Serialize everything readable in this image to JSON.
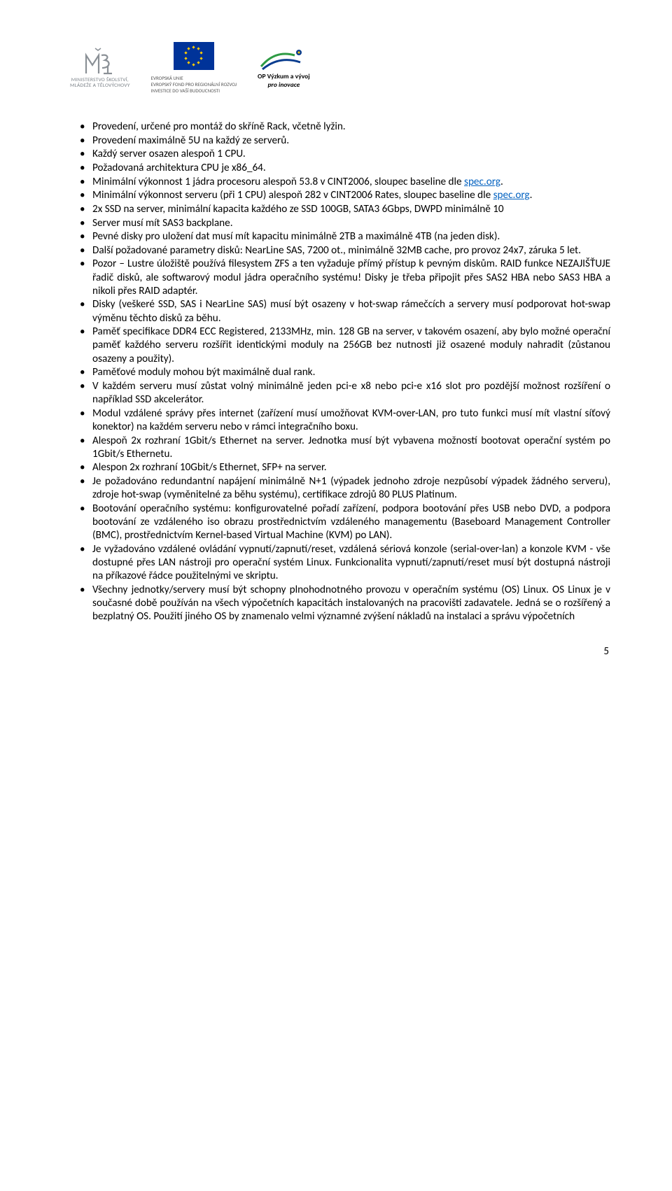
{
  "header": {
    "msmt_caption_l1": "MINISTERSTVO ŠKOLSTVÍ,",
    "msmt_caption_l2": "MLÁDEŽE A TĚLOVÝCHOVY",
    "eu_l1": "EVROPSKÁ UNIE",
    "eu_l2": "EVROPSKÝ FOND PRO REGIONÁLNÍ ROZVOJ",
    "eu_l3": "INVESTICE DO VAŠÍ BUDOUCNOSTI",
    "op_label": "OP Výzkum a vývoj",
    "op_sub": "pro inovace"
  },
  "link_text": "spec.org",
  "bullets": [
    "Provedení, určené pro montáž do skříně Rack, včetně lyžin.",
    "Provedení maximálně 5U na každý ze serverů.",
    "Každý server osazen alespoň 1 CPU.",
    "Požadovaná architektura CPU je x86_64.",
    "Minimální výkonnost 1 jádra procesoru alespoň 53.8 v CINT2006, sloupec baseline dle {{LINK}}.",
    "Minimální výkonnost serveru (při 1 CPU) alespoň 282 v CINT2006 Rates, sloupec baseline dle {{LINK}}.",
    "2x SSD na server, minimální kapacita každého ze SSD 100GB, SATA3 6Gbps, DWPD minimálně 10",
    "Server musí mít SAS3 backplane.",
    "Pevné disky pro uložení dat musí mít kapacitu minimálně 2TB a maximálně 4TB (na jeden disk).",
    "Další požadované parametry disků: NearLine SAS, 7200 ot., minimálně 32MB cache, pro provoz 24x7, záruka 5 let.",
    "Pozor – Lustre úložiště používá filesystem ZFS a ten vyžaduje přímý přístup k pevným diskům. RAID funkce NEZAJIŠŤUJE řadič disků, ale softwarový modul jádra operačního systému! Disky je třeba připojit přes SAS2 HBA nebo SAS3 HBA a nikoli přes RAID adaptér.",
    "Disky (veškeré SSD, SAS i NearLine SAS) musí být osazeny v hot-swap rámečcích a servery musí podporovat hot-swap výměnu těchto disků za běhu.",
    "Paměť specifikace DDR4 ECC Registered, 2133MHz, min. 128 GB na server, v takovém osazení, aby bylo možné operační paměť každého serveru rozšířit identickými moduly na 256GB bez nutnosti již osazené moduly nahradit (zůstanou osazeny a použity).",
    "Paměťové moduly mohou být maximálně dual rank.",
    "V každém serveru musí zůstat volný minimálně jeden pci-e x8 nebo pci-e x16 slot pro pozdější možnost rozšíření o například SSD akcelerátor.",
    "Modul vzdálené správy přes internet (zařízení musí umožňovat KVM-over-LAN, pro tuto funkci musí mít vlastní síťový konektor) na každém serveru nebo v rámci integračního boxu.",
    "Alespoň 2x rozhraní 1Gbit/s Ethernet na server. Jednotka musí být vybavena možností bootovat operační systém po 1Gbit/s Ethernetu.",
    "Alespon 2x rozhraní 10Gbit/s Ethernet, SFP+ na server.",
    "Je požadováno redundantní napájení minimálně N+1 (výpadek jednoho zdroje nezpůsobí výpadek žádného serveru), zdroje hot-swap (vyměnitelné za běhu systému), certifikace zdrojů 80 PLUS Platinum.",
    "Bootování operačního systému: konfigurovatelné pořadí zařízení, podpora bootování přes USB nebo DVD, a podpora bootování ze vzdáleného iso obrazu prostřednictvím vzdáleného managementu (Baseboard Management Controller (BMC), prostřednictvím Kernel-based Virtual Machine (KVM) po LAN).",
    "Je vyžadováno vzdálené ovládání vypnutí/zapnutí/reset, vzdálená sériová konzole (serial-over-lan) a konzole KVM - vše dostupné přes LAN nástroji pro operační systém Linux. Funkcionalita vypnutí/zapnutí/reset musí být dostupná nástroji na příkazové řádce použitelnými ve skriptu.",
    "Všechny jednotky/servery musí být schopny plnohodnotného provozu v operačním systému (OS) Linux. OS Linux je v současné době používán na všech výpočetních kapacitách instalovaných na pracovišti zadavatele. Jedná se o rozšířený a bezplatný OS. Použití jiného OS by znamenalo velmi významné zvýšení nákladů na instalaci a správu výpočetních"
  ],
  "page_number": "5",
  "colors": {
    "link": "#0563c1",
    "text": "#000000",
    "eu_blue": "#003399",
    "eu_gold": "#ffcc00"
  }
}
